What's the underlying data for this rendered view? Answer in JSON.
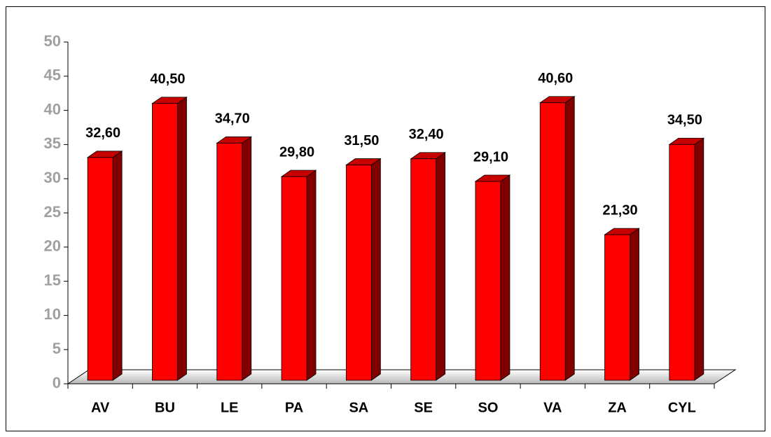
{
  "chart_data": {
    "type": "bar3d",
    "categories": [
      "AV",
      "BU",
      "LE",
      "PA",
      "SA",
      "SE",
      "SO",
      "VA",
      "ZA",
      "CYL"
    ],
    "values": [
      32.6,
      40.5,
      34.7,
      29.8,
      31.5,
      32.4,
      29.1,
      40.6,
      21.3,
      34.5
    ],
    "value_labels": [
      "32,60",
      "40,50",
      "34,70",
      "29,80",
      "31,50",
      "32,40",
      "29,10",
      "40,60",
      "21,30",
      "34,50"
    ],
    "color": "#ff0000",
    "ylim": [
      0,
      50
    ],
    "yticks": [
      0,
      5,
      10,
      15,
      20,
      25,
      30,
      35,
      40,
      45,
      50
    ]
  }
}
